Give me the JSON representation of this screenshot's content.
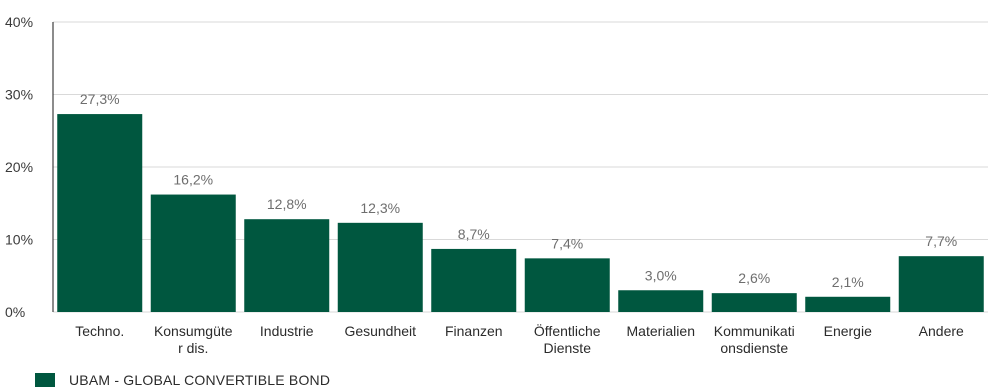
{
  "chart_data": {
    "type": "bar",
    "categories": [
      "Techno.",
      "Konsumgüter dis.",
      "Industrie",
      "Gesundheit",
      "Finanzen",
      "Öffentliche Dienste",
      "Materialien",
      "Kommunikationsdienste",
      "Energie",
      "Andere"
    ],
    "category_lines": [
      [
        "Techno."
      ],
      [
        "Konsumgüte",
        "r dis."
      ],
      [
        "Industrie"
      ],
      [
        "Gesundheit"
      ],
      [
        "Finanzen"
      ],
      [
        "Öffentliche",
        "Dienste"
      ],
      [
        "Materialien"
      ],
      [
        "Kommunikati",
        "onsdienste"
      ],
      [
        "Energie"
      ],
      [
        "Andere"
      ]
    ],
    "series": [
      {
        "name": "UBAM - GLOBAL CONVERTIBLE BOND",
        "values": [
          27.3,
          16.2,
          12.8,
          12.3,
          8.7,
          7.4,
          3.0,
          2.6,
          2.1,
          7.7
        ]
      }
    ],
    "data_labels": [
      "27,3%",
      "16,2%",
      "12,8%",
      "12,3%",
      "8,7%",
      "7,4%",
      "3,0%",
      "2,6%",
      "2,1%",
      "7,7%"
    ],
    "yticks": [
      0,
      10,
      20,
      30,
      40
    ],
    "ytick_labels": [
      "0%",
      "10%",
      "20%",
      "30%",
      "40%"
    ],
    "ylim": [
      0,
      40
    ],
    "grid": true,
    "legend_position": "bottom-left",
    "colors": {
      "bar": "#00573f",
      "grid": "#d9d9d9",
      "axis": "#1a1a1a"
    }
  },
  "legend": {
    "label": "UBAM - GLOBAL CONVERTIBLE BOND"
  }
}
